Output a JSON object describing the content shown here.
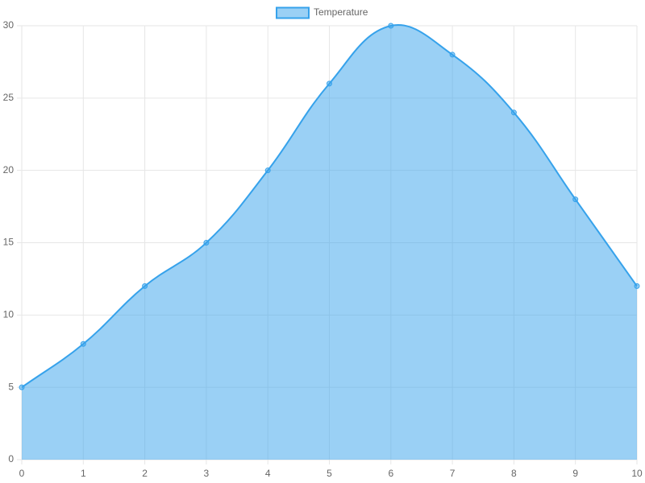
{
  "chart_data": {
    "type": "line",
    "x": [
      0,
      1,
      2,
      3,
      4,
      5,
      6,
      7,
      8,
      9,
      10
    ],
    "series": [
      {
        "name": "Temperature",
        "color": "#36a2eb",
        "values": [
          5,
          8,
          12,
          15,
          20,
          26,
          30,
          28,
          24,
          18,
          12
        ]
      }
    ],
    "xlim": [
      0,
      10
    ],
    "xticks": [
      0,
      1,
      2,
      3,
      4,
      5,
      6,
      7,
      8,
      9,
      10
    ],
    "ylim": [
      0,
      30
    ],
    "yticks": [
      0,
      5,
      10,
      15,
      20,
      25,
      30
    ],
    "grid": true,
    "legend": "top",
    "fill": true
  }
}
